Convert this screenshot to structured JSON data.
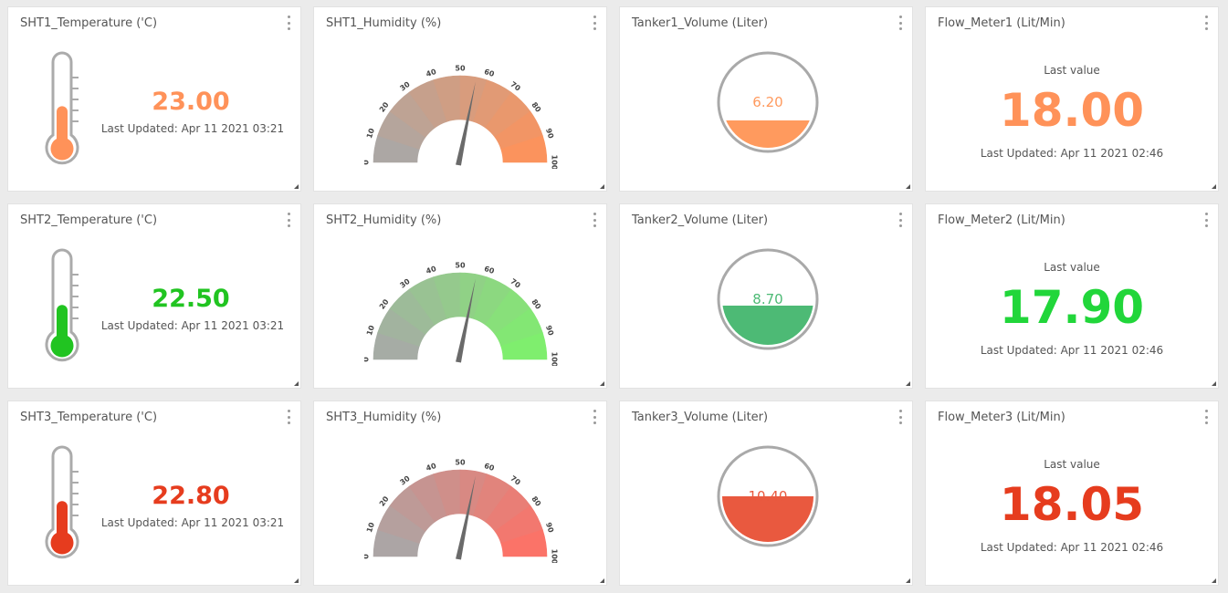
{
  "rows": [
    {
      "color": "#ff9259",
      "gauge_color": "#ff9259",
      "tank_color": "#ff9a5e",
      "temperature": {
        "title": "SHT1_Temperature ('C)",
        "value": "23.00",
        "updated": "Last Updated: Apr 11 2021 03:21",
        "level": 0.42,
        "icon": "thermometer-icon"
      },
      "humidity": {
        "title": "SHT1_Humidity (%)",
        "value": 56,
        "ticks": [
          "0",
          "10",
          "20",
          "30",
          "40",
          "50",
          "60",
          "70",
          "80",
          "90",
          "100"
        ]
      },
      "tank": {
        "title": "Tanker1_Volume (Liter)",
        "value": "6.20",
        "level": 0.3
      },
      "flow": {
        "title": "Flow_Meter1 (Lit/Min)",
        "label": "Last value",
        "value": "18.00",
        "updated": "Last Updated: Apr 11 2021 02:46"
      }
    },
    {
      "color": "#21c421",
      "gauge_color": "#7df26b",
      "tank_color": "#4dba75",
      "temperature": {
        "title": "SHT2_Temperature ('C)",
        "value": "22.50",
        "updated": "Last Updated: Apr 11 2021 03:21",
        "level": 0.4,
        "icon": "thermometer-icon"
      },
      "humidity": {
        "title": "SHT2_Humidity (%)",
        "value": 56,
        "ticks": [
          "0",
          "10",
          "20",
          "30",
          "40",
          "50",
          "60",
          "70",
          "80",
          "90",
          "100"
        ]
      },
      "tank": {
        "title": "Tanker2_Volume (Liter)",
        "value": "8.70",
        "level": 0.43
      },
      "flow": {
        "title": "Flow_Meter2 (Lit/Min)",
        "label": "Last value",
        "value": "17.90",
        "updated": "Last Updated: Apr 11 2021 02:46"
      }
    },
    {
      "color": "#e63c1e",
      "gauge_color": "#ff7065",
      "tank_color": "#e9593f",
      "temperature": {
        "title": "SHT3_Temperature ('C)",
        "value": "22.80",
        "updated": "Last Updated: Apr 11 2021 03:21",
        "level": 0.41,
        "icon": "thermometer-icon"
      },
      "humidity": {
        "title": "SHT3_Humidity (%)",
        "value": 56,
        "ticks": [
          "0",
          "10",
          "20",
          "30",
          "40",
          "50",
          "60",
          "70",
          "80",
          "90",
          "100"
        ]
      },
      "tank": {
        "title": "Tanker3_Volume (Liter)",
        "value": "10.40",
        "level": 0.5
      },
      "flow": {
        "title": "Flow_Meter3 (Lit/Min)",
        "label": "Last value",
        "value": "18.05",
        "updated": "Last Updated: Apr 11 2021 02:46"
      }
    }
  ],
  "icons": {
    "menu": "more-vertical-icon",
    "resize": "resize-handle-icon"
  },
  "gauge_base_color": "#a8a8a8"
}
